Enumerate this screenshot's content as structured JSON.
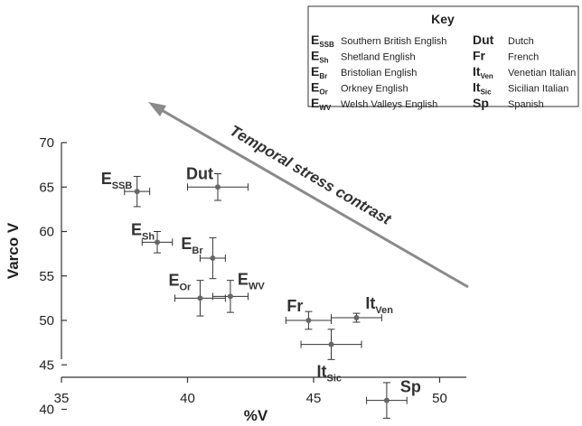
{
  "chart_data": {
    "type": "scatter",
    "title": "",
    "xlabel": "%V",
    "ylabel": "Varco V",
    "xlim": [
      35,
      52
    ],
    "ylim": [
      38,
      70
    ],
    "xticks": [
      "35",
      "40",
      "45",
      "50"
    ],
    "yticks": [
      "40",
      "45",
      "50",
      "55",
      "60",
      "65",
      "70"
    ],
    "points": [
      {
        "main": "E",
        "sub": "SSB",
        "x": 38.0,
        "y": 64.5,
        "xerr": 0.5,
        "yerr": 1.7
      },
      {
        "main": "Dut",
        "sub": "",
        "x": 41.2,
        "y": 65.0,
        "xerr": 1.2,
        "yerr": 1.5
      },
      {
        "main": "E",
        "sub": "Sh",
        "x": 38.8,
        "y": 58.8,
        "xerr": 0.6,
        "yerr": 1.2
      },
      {
        "main": "E",
        "sub": "Br",
        "x": 41.0,
        "y": 57.0,
        "xerr": 0.5,
        "yerr": 2.3
      },
      {
        "main": "E",
        "sub": "Or",
        "x": 40.5,
        "y": 52.5,
        "xerr": 1.0,
        "yerr": 2.0
      },
      {
        "main": "E",
        "sub": "WV",
        "x": 41.7,
        "y": 52.7,
        "xerr": 0.7,
        "yerr": 1.8
      },
      {
        "main": "Fr",
        "sub": "",
        "x": 44.8,
        "y": 50.0,
        "xerr": 0.9,
        "yerr": 1.0
      },
      {
        "main": "It",
        "sub": "Ven",
        "x": 46.7,
        "y": 50.3,
        "xerr": 1.0,
        "yerr": 0.5
      },
      {
        "main": "It",
        "sub": "Sic",
        "x": 45.7,
        "y": 47.3,
        "xerr": 1.2,
        "yerr": 1.7
      },
      {
        "main": "Sp",
        "sub": "",
        "x": 47.9,
        "y": 41.0,
        "xerr": 0.8,
        "yerr": 2.0
      }
    ],
    "arrow_label": "Temporal stress contrast",
    "legend": {
      "title": "Key",
      "entries": [
        {
          "main": "E",
          "sub": "SSB",
          "name": "Southern British English"
        },
        {
          "main": "E",
          "sub": "Sh",
          "name": "Shetland English"
        },
        {
          "main": "E",
          "sub": "Br",
          "name": "Bristolian English"
        },
        {
          "main": "E",
          "sub": "Or",
          "name": "Orkney English"
        },
        {
          "main": "E",
          "sub": "WV",
          "name": "Welsh Valleys English"
        },
        {
          "main": "Dut",
          "sub": "",
          "name": "Dutch"
        },
        {
          "main": "Fr",
          "sub": "",
          "name": "French"
        },
        {
          "main": "It",
          "sub": "Ven",
          "name": "Venetian Italian"
        },
        {
          "main": "It",
          "sub": "Sic",
          "name": "Sicilian Italian"
        },
        {
          "main": "Sp",
          "sub": "",
          "name": "Spanish"
        }
      ]
    },
    "colors": {
      "point": "#666666",
      "errorbar": "#333333",
      "arrow": "#888888",
      "axis": "#333333"
    }
  }
}
